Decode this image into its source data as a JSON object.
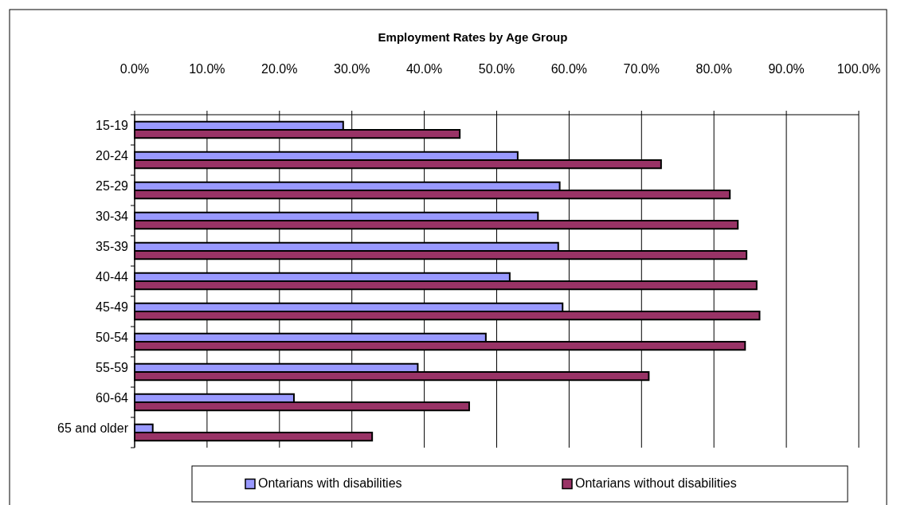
{
  "chart_data": {
    "type": "bar",
    "orientation": "horizontal",
    "title": "Employment Rates by Age Group",
    "categories": [
      "15-19",
      "20-24",
      "25-29",
      "30-34",
      "35-39",
      "40-44",
      "45-49",
      "50-54",
      "55-59",
      "60-64",
      "65 and older"
    ],
    "series": [
      {
        "name": "Ontarians  with disabilities",
        "color": "#9999ff",
        "values": [
          28.8,
          52.9,
          58.7,
          55.7,
          58.5,
          51.8,
          59.1,
          48.5,
          39.1,
          22.0,
          2.5
        ]
      },
      {
        "name": "Ontarians  without disabilities",
        "color": "#993366",
        "values": [
          44.9,
          72.7,
          82.2,
          83.3,
          84.5,
          85.9,
          86.3,
          84.3,
          71.0,
          46.2,
          32.8
        ]
      }
    ],
    "xlim": [
      0,
      100
    ],
    "xticks": [
      {
        "value": 0,
        "label": "0.0%"
      },
      {
        "value": 10,
        "label": "10.0%"
      },
      {
        "value": 20,
        "label": "20.0%"
      },
      {
        "value": 30,
        "label": "30.0%"
      },
      {
        "value": 40,
        "label": "40.0%"
      },
      {
        "value": 50,
        "label": "50.0%"
      },
      {
        "value": 60,
        "label": "60.0%"
      },
      {
        "value": 70,
        "label": "70.0%"
      },
      {
        "value": 80,
        "label": "80.0%"
      },
      {
        "value": 90,
        "label": "90.0%"
      },
      {
        "value": 100,
        "label": "100.0%"
      }
    ],
    "grid": "x",
    "legend": "bottom"
  }
}
